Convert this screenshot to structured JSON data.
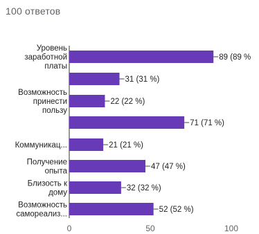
{
  "header": {
    "response_count": "100 ответов"
  },
  "colors": {
    "bar": "#673ab7",
    "axis": "#333333",
    "grid": "#e0e0e0",
    "text": "#222222",
    "muted": "#5f6368"
  },
  "chart_data": {
    "type": "bar",
    "orientation": "horizontal",
    "categories": [
      [
        "Уровень",
        "заработной",
        "платы"
      ],
      [
        ""
      ],
      [
        "Возможность",
        "принести",
        "пользу"
      ],
      [
        ""
      ],
      [
        "Коммуникац..."
      ],
      [
        "Получение",
        "опыта"
      ],
      [
        "Близость к",
        "дому"
      ],
      [
        "Возможность",
        "самореализ..."
      ]
    ],
    "values": [
      89,
      31,
      22,
      71,
      21,
      47,
      32,
      52
    ],
    "data_labels": [
      "89 (89 %",
      "31 (31 %)",
      "22 (22 %)",
      "71 (71 %)",
      "21 (21 %)",
      "47 (47 %)",
      "32 (32 %)",
      "52 (52 %)"
    ],
    "xlim": [
      0,
      100
    ],
    "xticks": [
      "0",
      "50",
      "100"
    ],
    "grid": false,
    "legend": "none"
  }
}
